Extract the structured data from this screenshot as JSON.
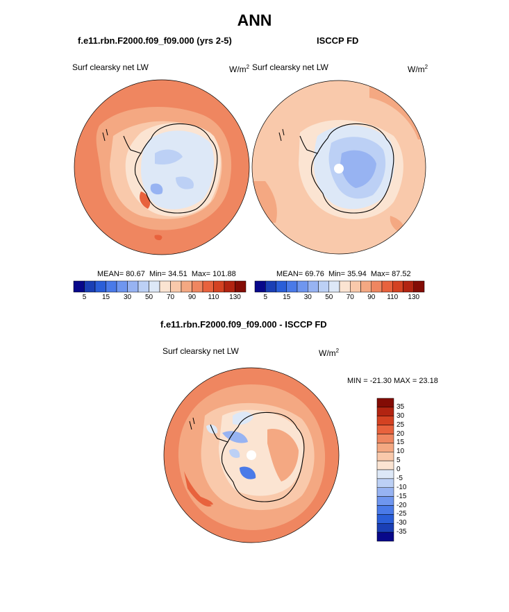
{
  "title": "ANN",
  "units": "W/m",
  "units_sup": "2",
  "chart_data": [
    {
      "type": "heatmap",
      "projection": "polar stereographic (South Pole)",
      "title": "f.e11.rbn.F2000.f09_f09.000 (yrs 2-5)",
      "variable": "Surf clearsky net LW",
      "units": "W/m2",
      "stats": {
        "mean_label": "MEAN=",
        "mean": "80.67",
        "min_label": "Min=",
        "min": "34.51",
        "max_label": "Max=",
        "max": "101.88"
      },
      "colorbar": {
        "levels": [
          5,
          10,
          15,
          20,
          30,
          40,
          50,
          60,
          70,
          80,
          90,
          100,
          110,
          120,
          130
        ],
        "tick_labels": [
          "5",
          "15",
          "30",
          "50",
          "70",
          "90",
          "110",
          "130"
        ],
        "colors": [
          "#08088a",
          "#1a3fb5",
          "#2a5ed8",
          "#4a7ae8",
          "#6f96ef",
          "#97b3f2",
          "#bcd0f5",
          "#dde8f7",
          "#fbe4d2",
          "#f9c9ab",
          "#f4a882",
          "#ef8660",
          "#e8623d",
          "#d44222",
          "#b22411",
          "#830c05"
        ]
      },
      "regions": {
        "ocean_far": "110",
        "ocean_mid": "100",
        "coast": "70",
        "plateau": "50"
      }
    },
    {
      "type": "heatmap",
      "projection": "polar stereographic (South Pole)",
      "title": "ISCCP FD",
      "variable": "Surf clearsky net LW",
      "units": "W/m2",
      "stats": {
        "mean_label": "MEAN=",
        "mean": "69.76",
        "min_label": "Min=",
        "min": "35.94",
        "max_label": "Max=",
        "max": "87.52"
      },
      "colorbar": {
        "levels": [
          5,
          10,
          15,
          20,
          30,
          40,
          50,
          60,
          70,
          80,
          90,
          100,
          110,
          120,
          130
        ],
        "tick_labels": [
          "5",
          "15",
          "30",
          "50",
          "70",
          "90",
          "110",
          "130"
        ],
        "colors": [
          "#08088a",
          "#1a3fb5",
          "#2a5ed8",
          "#4a7ae8",
          "#6f96ef",
          "#97b3f2",
          "#bcd0f5",
          "#dde8f7",
          "#fbe4d2",
          "#f9c9ab",
          "#f4a882",
          "#ef8660",
          "#e8623d",
          "#d44222",
          "#b22411",
          "#830c05"
        ]
      },
      "regions": {
        "ocean": "80",
        "plateau": "40",
        "pole_hole": "missing"
      }
    },
    {
      "type": "heatmap",
      "projection": "polar stereographic (South Pole)",
      "title": "f.e11.rbn.F2000.f09_f09.000 - ISCCP FD",
      "variable": "Surf clearsky net LW",
      "units": "W/m2",
      "stats": {
        "label": "MIN = -21.30 MAX =  23.18",
        "min": "-21.30",
        "max": "23.18"
      },
      "colorbar": {
        "orientation": "vertical",
        "levels": [
          35,
          30,
          25,
          20,
          15,
          10,
          5,
          0,
          -5,
          -10,
          -15,
          -20,
          -25,
          -30,
          -35
        ],
        "tick_labels": [
          "35",
          "30",
          "25",
          "20",
          "15",
          "10",
          "5",
          "0",
          "-5",
          "-10",
          "-15",
          "-20",
          "-25",
          "-30",
          "-35"
        ],
        "colors": [
          "#830c05",
          "#b22411",
          "#d44222",
          "#e8623d",
          "#ef8660",
          "#f4a882",
          "#f9c9ab",
          "#fbe4d2",
          "#dde8f7",
          "#bcd0f5",
          "#97b3f2",
          "#6f96ef",
          "#4a7ae8",
          "#2a5ed8",
          "#1a3fb5",
          "#08088a"
        ]
      },
      "regions": {
        "ocean_ring": "15",
        "ocean": "10",
        "continent": "5",
        "negatives": "-10"
      }
    }
  ]
}
